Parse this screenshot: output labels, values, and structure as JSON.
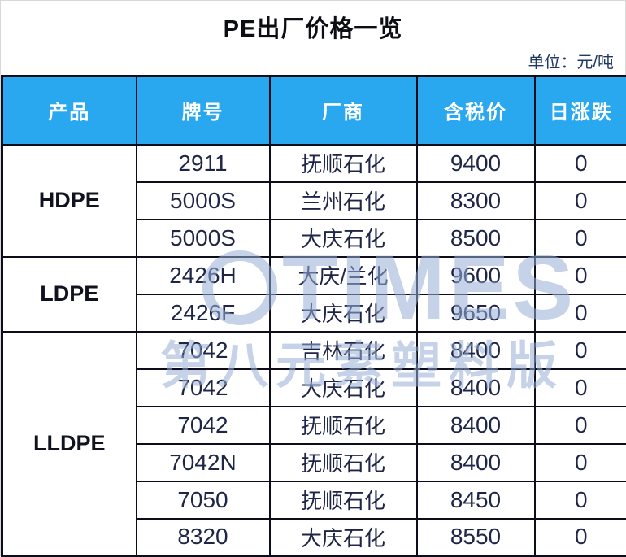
{
  "title": "PE出厂价格一览",
  "unit_label": "单位：元/吨",
  "colors": {
    "header_bg": "#29a7ef",
    "header_text": "#ffffff",
    "unit_text": "#1f3864",
    "border": "#0c0c1a",
    "cell_text": "#1e2547",
    "watermark": "#96add6"
  },
  "table": {
    "headers": [
      "产品",
      "牌号",
      "厂商",
      "含税价",
      "日涨跌"
    ],
    "groups": [
      {
        "product": "HDPE",
        "rows": [
          {
            "grade": "2911",
            "maker": "抚顺石化",
            "price": "9400",
            "change": "0"
          },
          {
            "grade": "5000S",
            "maker": "兰州石化",
            "price": "8300",
            "change": "0"
          },
          {
            "grade": "5000S",
            "maker": "大庆石化",
            "price": "8500",
            "change": "0"
          }
        ]
      },
      {
        "product": "LDPE",
        "rows": [
          {
            "grade": "2426H",
            "maker": "大庆/兰化",
            "price": "9600",
            "change": "0"
          },
          {
            "grade": "2426F",
            "maker": "大庆石化",
            "price": "9650",
            "change": "0"
          }
        ]
      },
      {
        "product": "LLDPE",
        "rows": [
          {
            "grade": "7042",
            "maker": "吉林石化",
            "price": "8400",
            "change": "0"
          },
          {
            "grade": "7042",
            "maker": "大庆石化",
            "price": "8400",
            "change": "0"
          },
          {
            "grade": "7042",
            "maker": "抚顺石化",
            "price": "8400",
            "change": "0"
          },
          {
            "grade": "7042N",
            "maker": "抚顺石化",
            "price": "8400",
            "change": "0"
          },
          {
            "grade": "7050",
            "maker": "抚顺石化",
            "price": "8450",
            "change": "0"
          },
          {
            "grade": "8320",
            "maker": "大庆石化",
            "price": "8550",
            "change": "0"
          }
        ]
      }
    ]
  },
  "watermark": {
    "brand": "TIMES",
    "caption": "第八元素塑料版"
  }
}
